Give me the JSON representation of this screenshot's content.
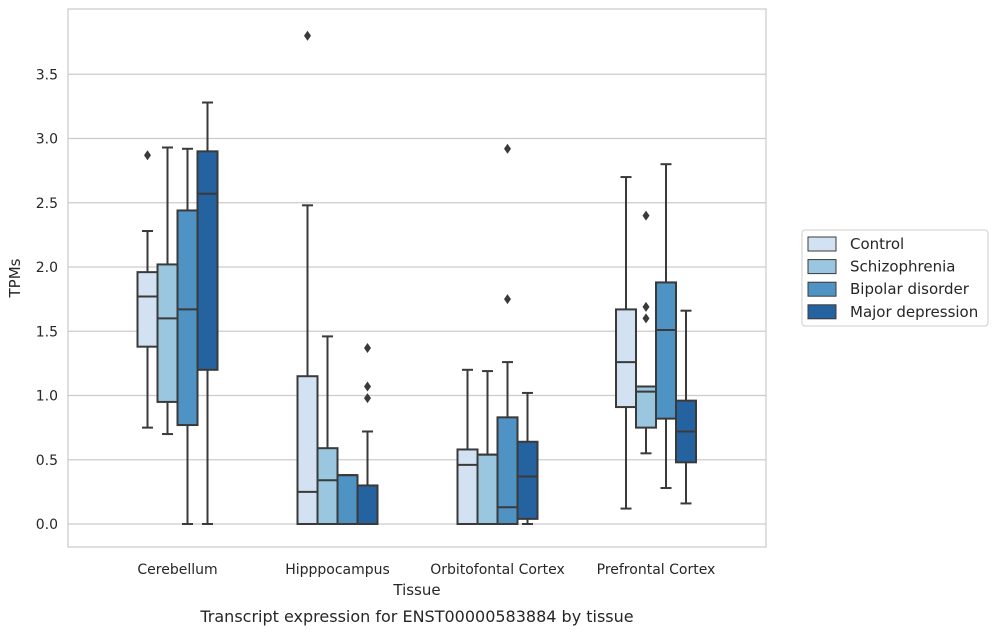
{
  "chart_data": {
    "type": "boxplot",
    "xlabel": "Tissue",
    "ylabel": "TPMs",
    "caption": "Transcript expression for ENST00000583884 by tissue",
    "ylim": [
      -0.18,
      3.98
    ],
    "yticks": [
      "0.0",
      "0.5",
      "1.0",
      "1.5",
      "2.0",
      "2.5",
      "3.0",
      "3.5"
    ],
    "grid": "horizontal",
    "legend_position": "right",
    "categories": [
      "Cerebellum",
      "Hipppocampus",
      "Orbitofontal Cortex",
      "Prefrontal Cortex"
    ],
    "series": [
      {
        "name": "Control",
        "color": "#d2e2f2",
        "boxes": [
          {
            "whislo": 0.75,
            "q1": 1.38,
            "med": 1.77,
            "q3": 1.96,
            "whishi": 2.28,
            "fliers": [
              2.87
            ]
          },
          {
            "whislo": 0.0,
            "q1": 0.0,
            "med": 0.25,
            "q3": 1.15,
            "whishi": 2.48,
            "fliers": [
              3.8
            ]
          },
          {
            "whislo": 0.0,
            "q1": 0.0,
            "med": 0.46,
            "q3": 0.58,
            "whishi": 1.2,
            "fliers": []
          },
          {
            "whislo": 0.12,
            "q1": 0.91,
            "med": 1.26,
            "q3": 1.67,
            "whishi": 2.7,
            "fliers": []
          }
        ]
      },
      {
        "name": "Schizophrenia",
        "color": "#9ac6df",
        "boxes": [
          {
            "whislo": 0.7,
            "q1": 0.95,
            "med": 1.6,
            "q3": 2.02,
            "whishi": 2.93,
            "fliers": []
          },
          {
            "whislo": 0.0,
            "q1": 0.0,
            "med": 0.34,
            "q3": 0.59,
            "whishi": 1.46,
            "fliers": []
          },
          {
            "whislo": 0.0,
            "q1": 0.0,
            "med": 0.54,
            "q3": 0.54,
            "whishi": 1.19,
            "fliers": []
          },
          {
            "whislo": 0.55,
            "q1": 0.75,
            "med": 1.03,
            "q3": 1.07,
            "whishi": 1.07,
            "fliers": [
              2.4,
              1.69,
              1.6
            ]
          }
        ]
      },
      {
        "name": "Bipolar disorder",
        "color": "#4e93c3",
        "boxes": [
          {
            "whislo": 0.0,
            "q1": 0.77,
            "med": 1.67,
            "q3": 2.44,
            "whishi": 2.92,
            "fliers": []
          },
          {
            "whislo": 0.0,
            "q1": 0.0,
            "med": 0.38,
            "q3": 0.38,
            "whishi": 0.38,
            "fliers": []
          },
          {
            "whislo": 0.0,
            "q1": 0.0,
            "med": 0.13,
            "q3": 0.83,
            "whishi": 1.26,
            "fliers": [
              2.92,
              1.75
            ]
          },
          {
            "whislo": 0.28,
            "q1": 0.82,
            "med": 1.51,
            "q3": 1.88,
            "whishi": 2.8,
            "fliers": []
          }
        ]
      },
      {
        "name": "Major depression",
        "color": "#2563a0",
        "boxes": [
          {
            "whislo": 0.0,
            "q1": 1.2,
            "med": 2.57,
            "q3": 2.9,
            "whishi": 3.28,
            "fliers": []
          },
          {
            "whislo": 0.0,
            "q1": 0.0,
            "med": 0.3,
            "q3": 0.3,
            "whishi": 0.72,
            "fliers": [
              1.37,
              1.07,
              0.98
            ]
          },
          {
            "whislo": 0.0,
            "q1": 0.04,
            "med": 0.37,
            "q3": 0.64,
            "whishi": 1.02,
            "fliers": []
          },
          {
            "whislo": 0.16,
            "q1": 0.48,
            "med": 0.72,
            "q3": 0.96,
            "whishi": 1.66,
            "fliers": []
          }
        ]
      }
    ]
  }
}
